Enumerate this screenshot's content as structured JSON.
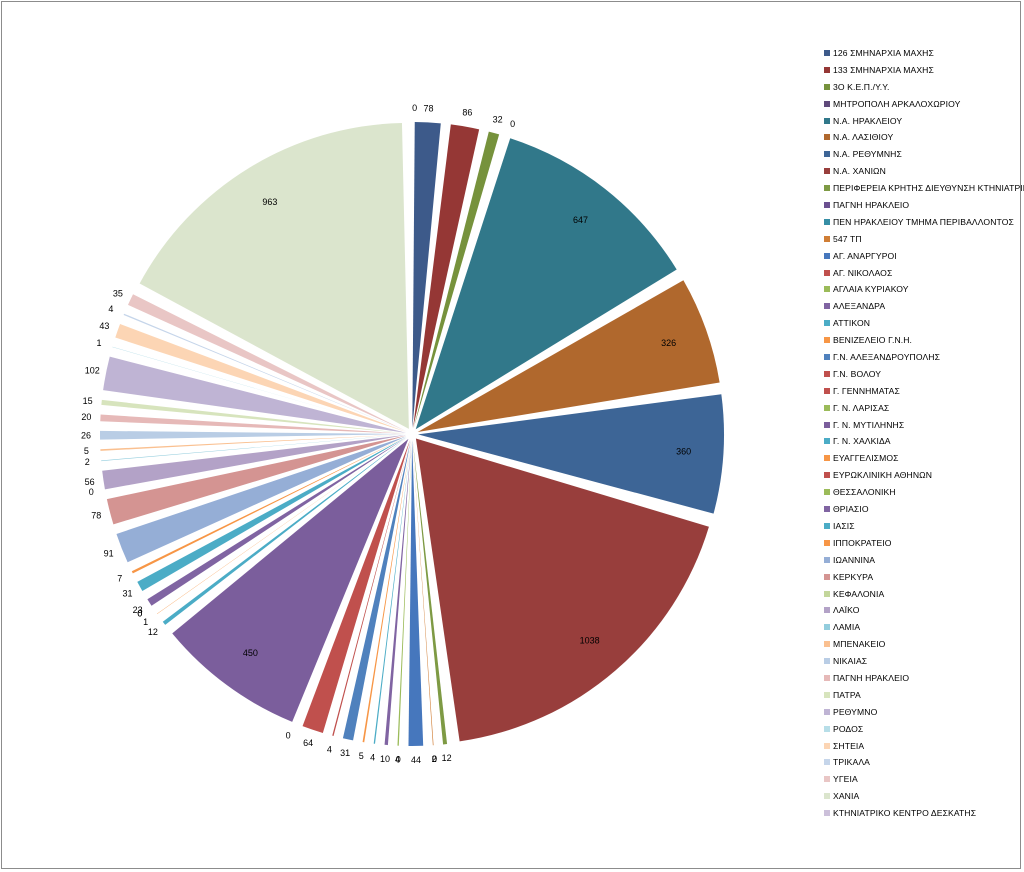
{
  "chart_data": {
    "type": "pie",
    "title": "",
    "exploded": true,
    "legend_position": "right",
    "slices": [
      {
        "label": "126 ΣΜΗΝΑΡΧΙΑ ΜΑΧΗΣ",
        "value": 78,
        "color": "#3d5a8a"
      },
      {
        "label": "133 ΣΜΗΝΑΡΧΙΑ ΜΑΧΗΣ",
        "value": 86,
        "color": "#953735"
      },
      {
        "label": "3Ο Κ.Ε.Π./Υ.Υ.",
        "value": 32,
        "color": "#76923c"
      },
      {
        "label": "ΜΗΤΡΟΠΟΛΗ ΑΡΚΑΛΟΧΩΡΙΟΥ",
        "value": 0,
        "color": "#5f497a"
      },
      {
        "label": "Ν.Α. ΗΡΑΚΛΕΙΟΥ",
        "value": 647,
        "color": "#31788a"
      },
      {
        "label": "Ν.Α. ΛΑΣΙΘΙΟΥ",
        "value": 326,
        "color": "#b0682d"
      },
      {
        "label": "Ν.Α. ΡΕΘΥΜΝΗΣ",
        "value": 360,
        "color": "#3d6596"
      },
      {
        "label": "Ν.Α. ΧΑΝΙΩΝ",
        "value": 1038,
        "color": "#983e3c"
      },
      {
        "label": "ΠΕΡΙΦΕΡΕΙΑ ΚΡΗΤΗΣ ΔΙΕΥΘΥΝΣΗ ΚΤΗΝΙΑΤΡΙΚΗΣ",
        "value": 12,
        "color": "#7e9a44"
      },
      {
        "label": "ΠΑΓΝΗ ΗΡΑΚΛΕΙΟ",
        "value": 0,
        "color": "#6b5090"
      },
      {
        "label": "ΠΕΝ ΗΡΑΚΛΕΙΟΥ ΤΜΗΜΑ ΠΕΡΙΒΑΛΛΟΝΤΟΣ",
        "value": 0,
        "color": "#368ea5"
      },
      {
        "label": "547 ΤΠ",
        "value": 2,
        "color": "#d07e35"
      },
      {
        "label": "ΑΓ. ΑΝΑΡΓΥΡΟΙ",
        "value": 44,
        "color": "#4677bd"
      },
      {
        "label": "ΑΓ. ΝΙΚΟΛΑΟΣ",
        "value": 0,
        "color": "#c0504d"
      },
      {
        "label": "ΑΓΛΑΙΑ ΚΥΡΙΑΚΟΥ",
        "value": 4,
        "color": "#9bbb59"
      },
      {
        "label": "ΑΛΕΞΑΝΔΡΑ",
        "value": 10,
        "color": "#8064a2"
      },
      {
        "label": "ΑΤΤΙΚΟΝ",
        "value": 4,
        "color": "#4bacc6"
      },
      {
        "label": "ΒΕΝΙΖΕΛΕΙΟ Γ.Ν.Η.",
        "value": 5,
        "color": "#f79646"
      },
      {
        "label": "Γ.Ν. ΑΛΕΞΑΝΔΡΟΥΠΟΛΗΣ",
        "value": 31,
        "color": "#4f81bd"
      },
      {
        "label": "Γ.Ν. ΒΟΛΟΥ",
        "value": 4,
        "color": "#c0504d"
      },
      {
        "label": "Γ. ΓΕΝΝΗΜΑΤΑΣ",
        "value": 64,
        "color": "#c0504d"
      },
      {
        "label": "Γ. Ν. ΛΑΡΙΣΑΣ",
        "value": 0,
        "color": "#9bbb59"
      },
      {
        "label": "Γ. Ν. ΜΥΤΙΛΗΝΗΣ",
        "value": 450,
        "color": "#7b5e9c"
      },
      {
        "label": "Γ. Ν. ΧΑΛΚΙΔΑ",
        "value": 12,
        "color": "#4bacc6"
      },
      {
        "label": "ΕΥΑΓΓΕΛΙΣΜΟΣ",
        "value": 1,
        "color": "#f79646"
      },
      {
        "label": "ΕΥΡΩΚΛΙΝΙΚΗ ΑΘΗΝΩΝ",
        "value": 0,
        "color": "#c0504d"
      },
      {
        "label": "ΘΕΣΣΑΛΟΝΙΚΗ",
        "value": 0,
        "color": "#9bbb59"
      },
      {
        "label": "ΘΡΙΑΣΙΟ",
        "value": 23,
        "color": "#8064a2"
      },
      {
        "label": "ΙΑΣΙΣ",
        "value": 31,
        "color": "#4bacc6"
      },
      {
        "label": "ΙΠΠΟΚΡΑΤΕΙΟ",
        "value": 7,
        "color": "#f79646"
      },
      {
        "label": "ΙΩΑΝΝΙΝΑ",
        "value": 91,
        "color": "#95aed6"
      },
      {
        "label": "ΚΕΡΚΥΡΑ",
        "value": 78,
        "color": "#d49492"
      },
      {
        "label": "ΚΕΦΑΛΟΝΙΑ",
        "value": 0,
        "color": "#c3d69b"
      },
      {
        "label": "ΛΑΪΚΟ",
        "value": 56,
        "color": "#b3a2c7"
      },
      {
        "label": "ΛΑΜΙΑ",
        "value": 2,
        "color": "#93cddd"
      },
      {
        "label": "ΜΠΕΝΑΚΕΙΟ",
        "value": 5,
        "color": "#fac090"
      },
      {
        "label": "ΝΙΚΑΙΑΣ",
        "value": 26,
        "color": "#b9cde5"
      },
      {
        "label": "ΠΑΓΝΗ ΗΡΑΚΛΕΙΟ",
        "value": 20,
        "color": "#e6b9b8"
      },
      {
        "label": "ΠΑΤΡΑ",
        "value": 15,
        "color": "#d7e4bd"
      },
      {
        "label": "ΡΕΘΥΜΝΟ",
        "value": 102,
        "color": "#bfb4d4"
      },
      {
        "label": "ΡΟΔΟΣ",
        "value": 1,
        "color": "#b7dee8"
      },
      {
        "label": "ΣΗΤΕΙΑ",
        "value": 43,
        "color": "#fcd5b4"
      },
      {
        "label": "ΤΡΙΚΑΛΑ",
        "value": 4,
        "color": "#c5d5ea"
      },
      {
        "label": "ΥΓΕΙΑ",
        "value": 35,
        "color": "#e9c6c5"
      },
      {
        "label": "ΧΑΝΙΑ",
        "value": 963,
        "color": "#dbe5cd"
      },
      {
        "label": "ΚΤΗΝΙΑΤΡΙΚΟ ΚΕΝΤΡΟ ΔΕΣΚΑΤΗΣ",
        "value": 0,
        "color": "#ccc0da"
      }
    ]
  }
}
